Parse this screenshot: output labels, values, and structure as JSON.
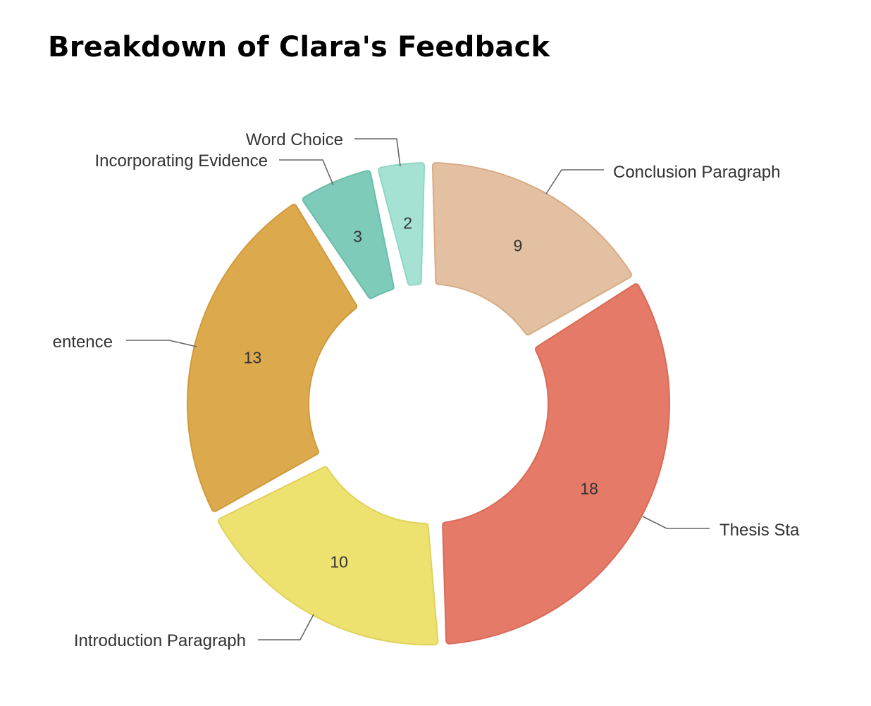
{
  "chart_data": {
    "type": "pie",
    "variant": "donut",
    "title": "Breakdown of Clara's Feedback",
    "categories": [
      "Conclusion Paragraph",
      "Thesis Statement",
      "Introduction Paragraph",
      "Topic Sentence",
      "Incorporating Evidence",
      "Word Choice"
    ],
    "values": [
      9,
      18,
      10,
      13,
      3,
      2
    ],
    "visible_labels": [
      "Conclusion Paragraph",
      "Thesis Sta",
      "Introduction Paragraph",
      "entence",
      "Incorporating Evidence",
      "Word Choice"
    ],
    "colors": [
      "#e2c0a1",
      "#e57a68",
      "#ede16f",
      "#dcaa4c",
      "#7ecbb9",
      "#a5e2d4"
    ],
    "stroke_colors": [
      "#d9ab84",
      "#d96a57",
      "#e0d25a",
      "#cf9a3b",
      "#69bda9",
      "#8fd6c6"
    ],
    "legend": "none"
  }
}
